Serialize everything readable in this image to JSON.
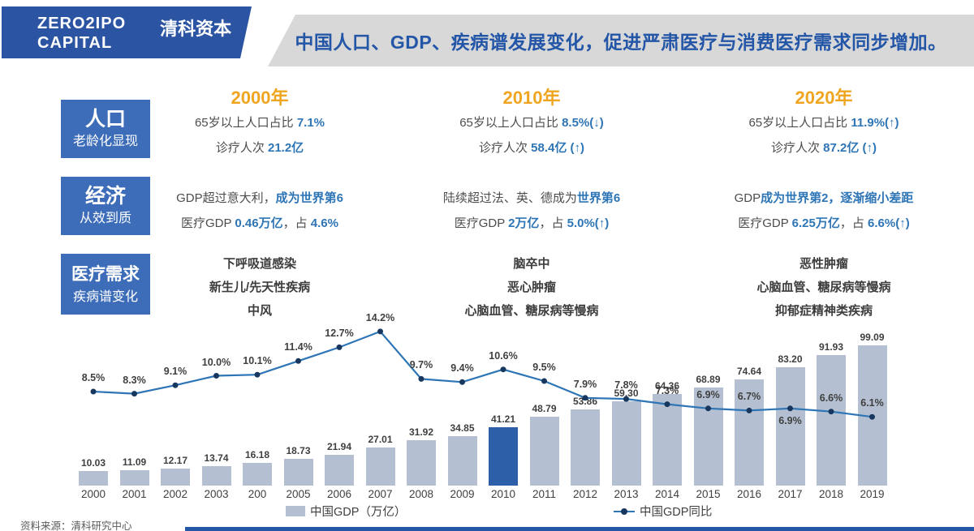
{
  "logo": {
    "en_line1": "ZERO2IPO",
    "en_line2": "CAPITAL",
    "cn": "清科资本"
  },
  "banner": {
    "title": "中国人口、GDP、疾病谱发展变化，促进严肃医疗与消费医疗需求同步增加。"
  },
  "columns": [
    {
      "year": "2000年"
    },
    {
      "year": "2010年"
    },
    {
      "year": "2020年"
    }
  ],
  "rows": [
    {
      "label": "人口",
      "sublabel": "老龄化显现",
      "cells": [
        {
          "lines": [
            [
              {
                "t": "65岁以上人口占比 "
              },
              {
                "t": "7.1%",
                "hl": true
              }
            ],
            [
              {
                "t": "诊疗人次 "
              },
              {
                "t": "21.2亿",
                "hl": true
              }
            ]
          ]
        },
        {
          "lines": [
            [
              {
                "t": "65岁以上人口占比 "
              },
              {
                "t": "8.5%(↓)",
                "hl": true
              }
            ],
            [
              {
                "t": "诊疗人次 "
              },
              {
                "t": "58.4亿 (↑)",
                "hl": true
              }
            ]
          ]
        },
        {
          "lines": [
            [
              {
                "t": "65岁以上人口占比 "
              },
              {
                "t": "11.9%(↑)",
                "hl": true
              }
            ],
            [
              {
                "t": "诊疗人次 "
              },
              {
                "t": "87.2亿 (↑)",
                "hl": true
              }
            ]
          ]
        }
      ]
    },
    {
      "label": "经济",
      "sublabel": "从效到质",
      "cells": [
        {
          "lines": [
            [
              {
                "t": "GDP超过意大利，"
              },
              {
                "t": "成为世界第6",
                "hl": true
              }
            ],
            [
              {
                "t": "医疗GDP "
              },
              {
                "t": "0.46万亿",
                "hl": true
              },
              {
                "t": "，占 "
              },
              {
                "t": "4.6%",
                "hl": true
              }
            ]
          ]
        },
        {
          "lines": [
            [
              {
                "t": "陆续超过法、英、德成为"
              },
              {
                "t": "世界第6",
                "hl": true
              }
            ],
            [
              {
                "t": "医疗GDP "
              },
              {
                "t": "2万亿",
                "hl": true
              },
              {
                "t": "，占 "
              },
              {
                "t": "5.0%(↑)",
                "hl": true
              }
            ]
          ]
        },
        {
          "lines": [
            [
              {
                "t": "GDP"
              },
              {
                "t": "成为世界第2，逐渐缩小差距",
                "hl": true
              }
            ],
            [
              {
                "t": "医疗GDP "
              },
              {
                "t": "6.25万亿",
                "hl": true
              },
              {
                "t": "，占 "
              },
              {
                "t": "6.6%(↑)",
                "hl": true
              }
            ]
          ]
        }
      ]
    },
    {
      "label": "医疗需求",
      "sublabel": "疾病谱变化",
      "cells": [
        {
          "lines": [
            [
              {
                "t": "下呼吸道感染"
              }
            ],
            [
              {
                "t": "新生儿/先天性疾病"
              }
            ],
            [
              {
                "t": "中风"
              }
            ]
          ]
        },
        {
          "lines": [
            [
              {
                "t": "脑卒中"
              }
            ],
            [
              {
                "t": "恶心肿瘤"
              }
            ],
            [
              {
                "t": "心脑血管、糖尿病等慢病"
              }
            ]
          ]
        },
        {
          "lines": [
            [
              {
                "t": "恶性肿瘤"
              }
            ],
            [
              {
                "t": "心脑血管、糖尿病等慢病"
              }
            ],
            [
              {
                "t": "抑郁症精神类疾病"
              }
            ]
          ]
        }
      ]
    }
  ],
  "chart_data": {
    "type": "bar+line",
    "categories": [
      "2000",
      "2001",
      "2002",
      "2003",
      "200",
      "2005",
      "2006",
      "2007",
      "2008",
      "2009",
      "2010",
      "2011",
      "2012",
      "2013",
      "2014",
      "2015",
      "2016",
      "2017",
      "2018",
      "2019"
    ],
    "series": [
      {
        "name": "中国GDP（万亿）",
        "type": "bar",
        "values": [
          10.03,
          11.09,
          12.17,
          13.74,
          16.18,
          18.73,
          21.94,
          27.01,
          31.92,
          34.85,
          41.21,
          48.79,
          53.86,
          59.3,
          64.36,
          68.89,
          74.64,
          83.2,
          91.93,
          99.09
        ],
        "labels": [
          "10.03",
          "11.09",
          "12.17",
          "13.74",
          "16.18",
          "18.73",
          "21.94",
          "27.01",
          "31.92",
          "34.85",
          "41.21",
          "48.79",
          "53.86",
          "59.30",
          "64.36",
          "68.89",
          "74.64",
          "83.20",
          "91.93",
          "99.09"
        ]
      },
      {
        "name": "中国GDP同比",
        "type": "line",
        "values": [
          8.5,
          8.3,
          9.1,
          10.0,
          10.1,
          11.4,
          12.7,
          14.2,
          9.7,
          9.4,
          10.6,
          9.5,
          7.9,
          7.8,
          7.3,
          6.9,
          6.7,
          6.9,
          6.6,
          6.1
        ],
        "labels": [
          "8.5%",
          "8.3%",
          "9.1%",
          "10.0%",
          "10.1%",
          "11.4%",
          "12.7%",
          "14.2%",
          "9.7%",
          "9.4%",
          "10.6%",
          "9.5%",
          "7.9%",
          "7.8%",
          "7.3%",
          "6.9%",
          "6.7%",
          "6.9%",
          "6.6%",
          "6.1%"
        ]
      }
    ],
    "highlight_index": 10,
    "label_below_indices": [
      17
    ],
    "legend_position": "bottom",
    "grid": false,
    "colors": {
      "bar": "#b4c0d1",
      "bar_highlight": "#2d5fa9",
      "line": "#2e75b6",
      "dot": "#17375e"
    }
  },
  "legend": {
    "gdp_label": "中国GDP（万亿）",
    "yoy_label": "中国GDP同比"
  },
  "source": "资料来源：清科研究中心",
  "theme": {
    "accent_blue": "#2e75b6",
    "header_orange": "#f0a520",
    "box_blue": "#3d6db8",
    "banner_gray": "#d8d8d8"
  }
}
